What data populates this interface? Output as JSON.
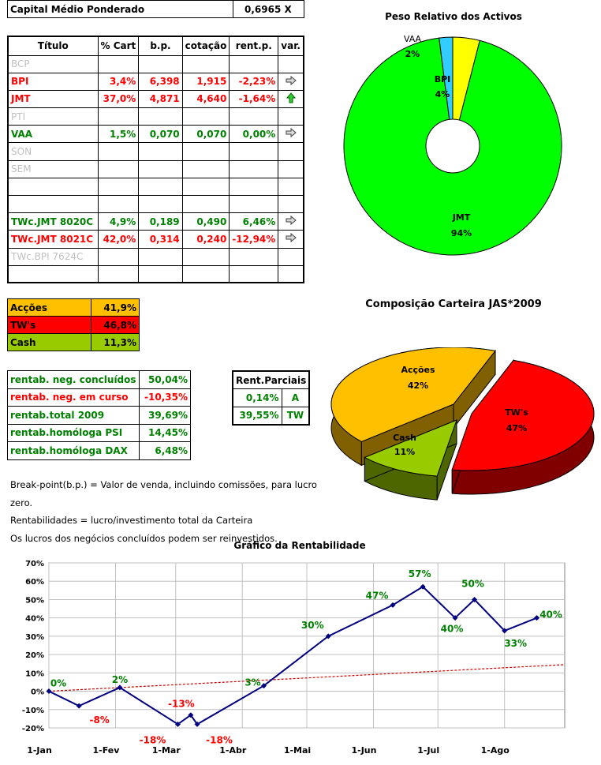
{
  "capital": {
    "label": "Capital Médio Ponderado",
    "value": "0,6965 X"
  },
  "assets_table": {
    "headers": [
      "Título",
      "% Cart",
      "b.p.",
      "cotação",
      "rent.p.",
      "var."
    ],
    "rows": [
      {
        "titulo": "BCP",
        "cart": "",
        "bp": "",
        "cot": "",
        "rent": "",
        "var": "",
        "style": "grey"
      },
      {
        "titulo": "BPI",
        "cart": "3,4%",
        "bp": "6,398",
        "cot": "1,915",
        "rent": "-2,23%",
        "var": "arrow-right",
        "style": "red"
      },
      {
        "titulo": "JMT",
        "cart": "37,0%",
        "bp": "4,871",
        "cot": "4,640",
        "rent": "-1,64%",
        "var": "arrow-up",
        "style": "red"
      },
      {
        "titulo": "PTI",
        "cart": "",
        "bp": "",
        "cot": "",
        "rent": "",
        "var": "",
        "style": "grey"
      },
      {
        "titulo": "VAA",
        "cart": "1,5%",
        "bp": "0,070",
        "cot": "0,070",
        "rent": "0,00%",
        "var": "arrow-right",
        "style": "green"
      },
      {
        "titulo": "SON",
        "cart": "",
        "bp": "",
        "cot": "",
        "rent": "",
        "var": "",
        "style": "grey"
      },
      {
        "titulo": "SEM",
        "cart": "",
        "bp": "",
        "cot": "",
        "rent": "",
        "var": "",
        "style": "grey"
      },
      {
        "titulo": "",
        "cart": "",
        "bp": "",
        "cot": "",
        "rent": "",
        "var": "",
        "style": "grey"
      },
      {
        "titulo": "",
        "cart": "",
        "bp": "",
        "cot": "",
        "rent": "",
        "var": "",
        "style": "grey"
      },
      {
        "titulo": "TWc.JMT 8020C",
        "cart": "4,9%",
        "bp": "0,189",
        "cot": "0,490",
        "rent": "6,46%",
        "var": "arrow-right",
        "style": "green"
      },
      {
        "titulo": "TWc.JMT 8021C",
        "cart": "42,0%",
        "bp": "0,314",
        "cot": "0,240",
        "rent": "-12,94%",
        "var": "arrow-right",
        "style": "red"
      },
      {
        "titulo": "TWc.BPI 7624C",
        "cart": "",
        "bp": "",
        "cot": "",
        "rent": "",
        "var": "",
        "style": "grey"
      },
      {
        "titulo": "",
        "cart": "",
        "bp": "",
        "cot": "",
        "rent": "",
        "var": "",
        "style": "grey"
      }
    ]
  },
  "composition": [
    {
      "label": "Acções",
      "value": "41,9%",
      "color": "#ffc000",
      "text_color": "#000000"
    },
    {
      "label": "TW's",
      "value": "46,8%",
      "color": "#ff0000",
      "text_color": "#000000"
    },
    {
      "label": "Cash",
      "value": "11,3%",
      "color": "#99cc00",
      "text_color": "#000000"
    }
  ],
  "rentab": [
    {
      "label": "rentab. neg. concluídos",
      "value": "50,04%",
      "style": "green"
    },
    {
      "label": "rentab. neg. em curso",
      "value": "-10,35%",
      "style": "red"
    },
    {
      "label": "rentab.total 2009",
      "value": "39,69%",
      "style": "green"
    },
    {
      "label": "rentab.homóloga PSI",
      "value": "14,45%",
      "style": "green"
    },
    {
      "label": "rentab.homóloga DAX",
      "value": "6,48%",
      "style": "green"
    }
  ],
  "rent_parciais": {
    "header": "Rent.Parciais",
    "rows": [
      {
        "value": "0,14%",
        "tag": "A"
      },
      {
        "value": "39,55%",
        "tag": "TW"
      }
    ]
  },
  "notes": [
    "Break-point(b.p.) = Valor de venda, incluindo comissões, para lucro zero.",
    "Rentabilidades = lucro/investimento total da Carteira",
    "Os lucros dos negócios concluídos podem ser reinvestidos."
  ],
  "colors": {
    "green": "#008000",
    "red": "#ff0000",
    "grey": "#c0c0c0",
    "line": "#000080",
    "trend": "#cc0000"
  },
  "chart_data": [
    {
      "type": "pie",
      "title": "Peso Relativo dos Activos",
      "donut": true,
      "slices": [
        {
          "name": "JMT",
          "value": 94,
          "label": "94%",
          "color": "#00ff00"
        },
        {
          "name": "VAA",
          "value": 2,
          "label": "2%",
          "color": "#33ccff"
        },
        {
          "name": "BPI",
          "value": 4,
          "label": "4%",
          "color": "#ffff00"
        }
      ]
    },
    {
      "type": "pie",
      "title": "Composição Carteira JAS*2009",
      "three_d": true,
      "slices": [
        {
          "name": "Acções",
          "value": 42,
          "label": "42%",
          "color": "#ffc000"
        },
        {
          "name": "TW's",
          "value": 47,
          "label": "47%",
          "color": "#ff0000"
        },
        {
          "name": "Cash",
          "value": 11,
          "label": "11%",
          "color": "#99cc00"
        }
      ]
    },
    {
      "type": "line",
      "title": "Gráfico da Rentabilidade",
      "xlabel": "",
      "ylabel": "",
      "x_ticks": [
        "1-Jan",
        "1-Fev",
        "1-Mar",
        "1-Abr",
        "1-Mai",
        "1-Jun",
        "1-Jul",
        "1-Ago"
      ],
      "x_tick_days": [
        0,
        31,
        59,
        90,
        120,
        151,
        181,
        212
      ],
      "ylim": [
        -20,
        70
      ],
      "y_ticks": [
        -20,
        -10,
        0,
        10,
        20,
        30,
        40,
        50,
        60,
        70
      ],
      "grid": true,
      "series": [
        {
          "points": [
            {
              "day": 0,
              "y": 0,
              "label": "0%",
              "label_color": "#008000"
            },
            {
              "day": 14,
              "y": -8,
              "label": "-8%",
              "label_color": "#ff0000"
            },
            {
              "day": 33,
              "y": 2,
              "label": "2%",
              "label_color": "#008000"
            },
            {
              "day": 60,
              "y": -18,
              "label": "-18%",
              "label_color": "#ff0000"
            },
            {
              "day": 66,
              "y": -13,
              "label": "-13%",
              "label_color": "#ff0000"
            },
            {
              "day": 69,
              "y": -18,
              "label": "-18%",
              "label_color": "#ff0000"
            },
            {
              "day": 100,
              "y": 3,
              "label": "3%",
              "label_color": "#008000"
            },
            {
              "day": 130,
              "y": 30,
              "label": "30%",
              "label_color": "#008000"
            },
            {
              "day": 160,
              "y": 47,
              "label": "47%",
              "label_color": "#008000"
            },
            {
              "day": 174,
              "y": 57,
              "label": "57%",
              "label_color": "#008000"
            },
            {
              "day": 189,
              "y": 40,
              "label": "40%",
              "label_color": "#008000"
            },
            {
              "day": 198,
              "y": 50,
              "label": "50%",
              "label_color": "#008000"
            },
            {
              "day": 212,
              "y": 33,
              "label": "33%",
              "label_color": "#008000"
            },
            {
              "day": 227,
              "y": 40,
              "label": "40%",
              "label_color": "#008000"
            }
          ]
        },
        {
          "trendline": true,
          "points": [
            {
              "day": 0,
              "y": 0
            },
            {
              "day": 240,
              "y": 14.5
            }
          ]
        }
      ]
    }
  ]
}
